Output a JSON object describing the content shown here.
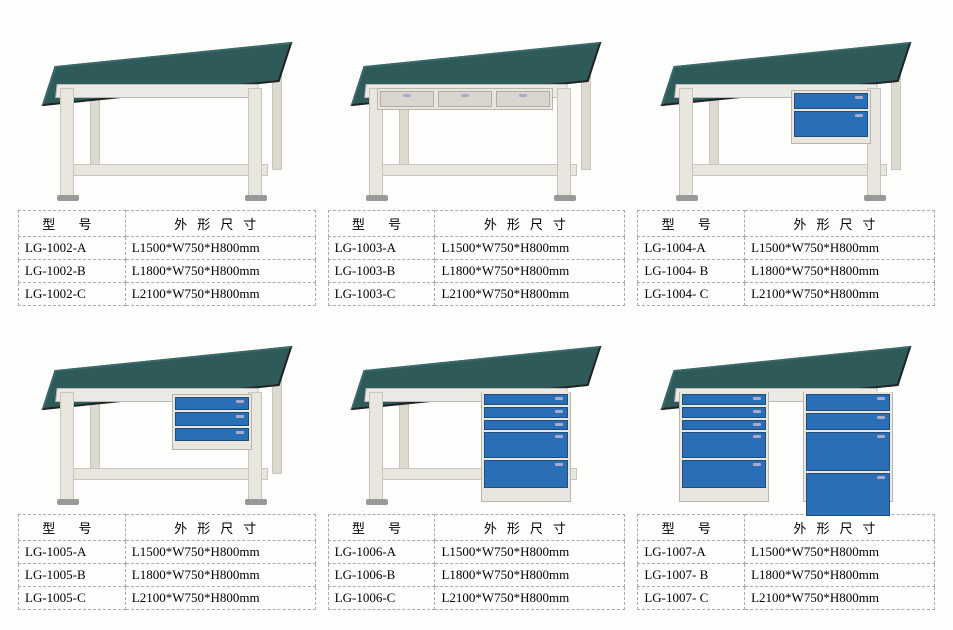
{
  "table_headers": {
    "model": "型 号",
    "dims": "外形尺寸"
  },
  "products": [
    {
      "id": "p1",
      "variant": "plain",
      "specs": [
        {
          "model": "LG-1002-A",
          "dims": "L1500*W750*H800mm"
        },
        {
          "model": "LG-1002-B",
          "dims": "L1800*W750*H800mm"
        },
        {
          "model": "LG-1002-C",
          "dims": "L2100*W750*H800mm"
        }
      ]
    },
    {
      "id": "p2",
      "variant": "three_drawer_front",
      "specs": [
        {
          "model": "LG-1003-A",
          "dims": "L1500*W750*H800mm"
        },
        {
          "model": "LG-1003-B",
          "dims": "L1800*W750*H800mm"
        },
        {
          "model": "LG-1003-C",
          "dims": "L2100*W750*H800mm"
        }
      ]
    },
    {
      "id": "p3",
      "variant": "right_hang_2",
      "specs": [
        {
          "model": "LG-1004-A",
          "dims": "L1500*W750*H800mm"
        },
        {
          "model": "LG-1004- B",
          "dims": "L1800*W750*H800mm"
        },
        {
          "model": "LG-1004- C",
          "dims": "L2100*W750*H800mm"
        }
      ]
    },
    {
      "id": "p4",
      "variant": "right_hang_3_shallow",
      "specs": [
        {
          "model": "LG-1005-A",
          "dims": "L1500*W750*H800mm"
        },
        {
          "model": "LG-1005-B",
          "dims": "L1800*W750*H800mm"
        },
        {
          "model": "LG-1005-C",
          "dims": "L2100*W750*H800mm"
        }
      ]
    },
    {
      "id": "p5",
      "variant": "right_pedestal_5",
      "specs": [
        {
          "model": "LG-1006-A",
          "dims": "L1500*W750*H800mm"
        },
        {
          "model": "LG-1006-B",
          "dims": "L1800*W750*H800mm"
        },
        {
          "model": "LG-1006-C",
          "dims": "L2100*W750*H800mm"
        }
      ]
    },
    {
      "id": "p6",
      "variant": "double_pedestal",
      "specs": [
        {
          "model": "LG-1007-A",
          "dims": "L1500*W750*H800mm"
        },
        {
          "model": "LG-1007- B",
          "dims": "L1800*W750*H800mm"
        },
        {
          "model": "LG-1007- C",
          "dims": "L2100*W750*H800mm"
        }
      ]
    }
  ],
  "colors": {
    "tabletop": "#2f5a5a",
    "frame": "#e8e6df",
    "drawer": "#2a6fb5",
    "border_dash": "#aaaaaa",
    "background": "#fdfdfc"
  }
}
